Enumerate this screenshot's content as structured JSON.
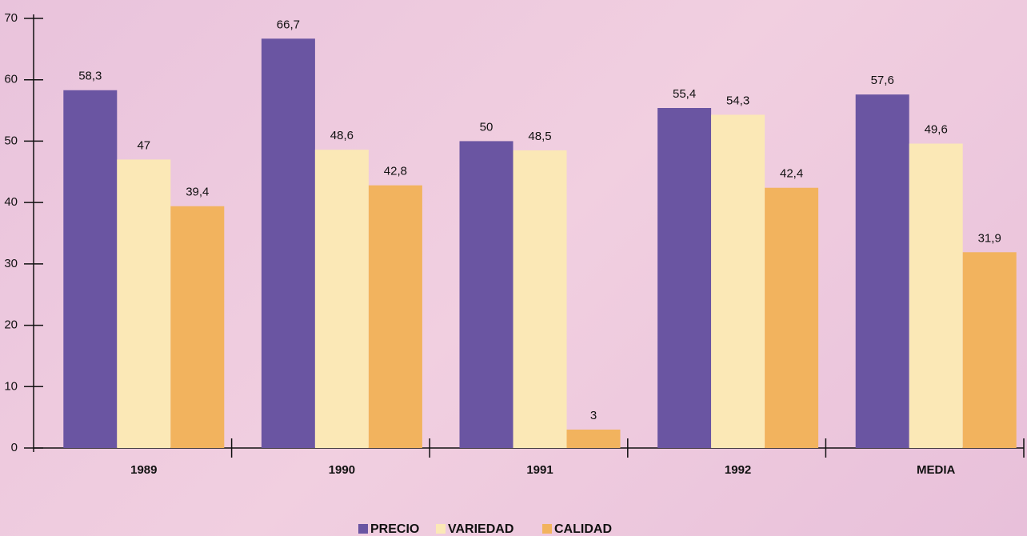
{
  "chart_data": {
    "type": "bar",
    "categories": [
      "1989",
      "1990",
      "1991",
      "1992",
      "MEDIA"
    ],
    "series": [
      {
        "name": "PRECIO",
        "color": "#6a55a2",
        "values": [
          58.3,
          66.7,
          50,
          55.4,
          57.6
        ],
        "value_labels": [
          "58,3",
          "66,7",
          "50",
          "55,4",
          "57,6"
        ]
      },
      {
        "name": "VARIEDAD",
        "color": "#fbe8b6",
        "values": [
          47,
          48.6,
          48.5,
          54.3,
          49.6
        ],
        "value_labels": [
          "47",
          "48,6",
          "48,5",
          "54,3",
          "49,6"
        ]
      },
      {
        "name": "CALIDAD",
        "color": "#f2b35e",
        "values": [
          39.4,
          42.8,
          3,
          42.4,
          31.9
        ],
        "value_labels": [
          "39,4",
          "42,8",
          "3",
          "42,4",
          "31,9"
        ]
      }
    ],
    "ylim": [
      0,
      70
    ],
    "yticks": [
      0,
      10,
      20,
      30,
      40,
      50,
      60,
      70
    ],
    "legend": "bottom"
  }
}
